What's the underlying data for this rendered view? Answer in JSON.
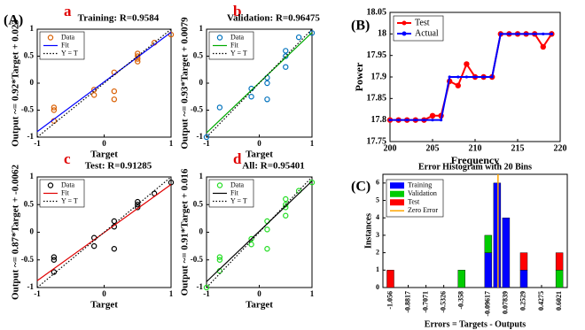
{
  "figure_labels": [
    "(A)",
    "(B)",
    "(C)"
  ],
  "chart_data": [
    {
      "type": "scatter",
      "panel": "a",
      "title": "Training: R=0.9584",
      "xlabel": "Target",
      "ylabel": "Output ~= 0.92*Target + 0.023",
      "xlim": [
        -1,
        1
      ],
      "ylim": [
        -1,
        1
      ],
      "xticks": [
        -1,
        0,
        1
      ],
      "yticks": [
        -1,
        -0.5,
        0,
        0.5,
        1
      ],
      "series": [
        {
          "name": "Data",
          "color": "#d95f02",
          "style": "marker",
          "x": [
            -0.75,
            -0.75,
            -0.75,
            -0.15,
            -0.15,
            0.15,
            0.15,
            0.15,
            0.5,
            0.5,
            0.5,
            0.5,
            0.75,
            1
          ],
          "values": [
            -0.45,
            -0.5,
            -0.7,
            -0.12,
            -0.22,
            0.2,
            -0.15,
            -0.3,
            0.55,
            0.5,
            0.45,
            0.4,
            0.75,
            0.9
          ]
        },
        {
          "name": "Fit",
          "color": "#0000ff",
          "style": "line",
          "x": [
            -1,
            1
          ],
          "values": [
            -0.897,
            0.943
          ]
        },
        {
          "name": "Y = T",
          "color": "#000000",
          "style": "dotted",
          "x": [
            -1,
            1
          ],
          "values": [
            -1,
            1
          ]
        }
      ]
    },
    {
      "type": "scatter",
      "panel": "b",
      "title": "Validation: R=0.96475",
      "xlabel": "Target",
      "ylabel": "Output ~= 0.93*Target + 0.0079",
      "xlim": [
        -1,
        1
      ],
      "ylim": [
        -1,
        1
      ],
      "xticks": [
        -1,
        0,
        1
      ],
      "yticks": [
        -1,
        -0.5,
        0,
        0.5,
        1
      ],
      "series": [
        {
          "name": "Data",
          "color": "#0072bd",
          "style": "marker",
          "x": [
            -0.75,
            -1,
            -0.15,
            -0.15,
            0.15,
            0.15,
            0.15,
            0.5,
            0.5,
            0.5,
            0.75,
            1
          ],
          "values": [
            -0.45,
            -1,
            -0.1,
            -0.25,
            0.1,
            0,
            -0.3,
            0.6,
            0.5,
            0.3,
            0.85,
            0.93
          ]
        },
        {
          "name": "Fit",
          "color": "#00aa00",
          "style": "line",
          "x": [
            -1,
            1
          ],
          "values": [
            -0.922,
            0.938
          ]
        },
        {
          "name": "Y = T",
          "color": "#000000",
          "style": "dotted",
          "x": [
            -1,
            1
          ],
          "values": [
            -1,
            1
          ]
        }
      ]
    },
    {
      "type": "scatter",
      "panel": "c",
      "title": "Test: R=0.91285",
      "xlabel": "Target",
      "ylabel": "Output ~= 0.87*Target + -0.0062",
      "xlim": [
        -1,
        1
      ],
      "ylim": [
        -1,
        1
      ],
      "xticks": [
        -1,
        0,
        1
      ],
      "yticks": [
        -1,
        -0.5,
        0,
        0.5,
        1
      ],
      "series": [
        {
          "name": "Data",
          "color": "#000000",
          "style": "marker",
          "x": [
            -0.75,
            -0.75,
            -0.75,
            -0.15,
            -0.15,
            0.15,
            0.15,
            0.15,
            0.5,
            0.5,
            0.5,
            0.75,
            1
          ],
          "values": [
            -0.45,
            -0.5,
            -0.72,
            -0.1,
            -0.25,
            0.2,
            0.1,
            -0.3,
            0.5,
            0.55,
            0.45,
            0.7,
            0.9
          ]
        },
        {
          "name": "Fit",
          "color": "#e00000",
          "style": "line",
          "x": [
            -1,
            1
          ],
          "values": [
            -0.876,
            0.864
          ]
        },
        {
          "name": "Y = T",
          "color": "#000000",
          "style": "dotted",
          "x": [
            -1,
            1
          ],
          "values": [
            -1,
            1
          ]
        }
      ]
    },
    {
      "type": "scatter",
      "panel": "d",
      "title": "All: R=0.95401",
      "xlabel": "Target",
      "ylabel": "Output ~= 0.91*Target + 0.016",
      "xlim": [
        -1,
        1
      ],
      "ylim": [
        -1,
        1
      ],
      "xticks": [
        -1,
        0,
        1
      ],
      "yticks": [
        -1,
        -0.5,
        0,
        0.5,
        1
      ],
      "series": [
        {
          "name": "Data",
          "color": "#22dd22",
          "style": "marker",
          "x": [
            -1,
            -0.75,
            -0.75,
            -0.75,
            -0.15,
            -0.15,
            0.15,
            0.15,
            0.15,
            0.5,
            0.5,
            0.5,
            0.5,
            0.75,
            1
          ],
          "values": [
            -1,
            -0.45,
            -0.5,
            -0.7,
            -0.12,
            -0.22,
            0.2,
            0.05,
            -0.3,
            0.6,
            0.5,
            0.45,
            0.3,
            0.75,
            0.9
          ]
        },
        {
          "name": "Fit",
          "color": "#000000",
          "style": "line",
          "x": [
            -1,
            1
          ],
          "values": [
            -0.894,
            0.926
          ]
        },
        {
          "name": "Y = T",
          "color": "#000000",
          "style": "dotted",
          "x": [
            -1,
            1
          ],
          "values": [
            -1,
            1
          ]
        }
      ]
    },
    {
      "type": "line",
      "xlabel": "Frequency",
      "ylabel": "Power",
      "xlim": [
        200,
        220
      ],
      "ylim": [
        17.75,
        18.05
      ],
      "xticks": [
        200,
        205,
        210,
        215,
        220
      ],
      "yticks": [
        17.75,
        17.8,
        17.85,
        17.9,
        17.95,
        18,
        18.05
      ],
      "x": [
        200,
        201,
        202,
        203,
        204,
        205,
        206,
        207,
        208,
        209,
        210,
        211,
        212,
        213,
        214,
        215,
        216,
        217,
        218,
        219
      ],
      "series": [
        {
          "name": "Test",
          "color": "#ff0000",
          "values": [
            17.8,
            17.8,
            17.8,
            17.8,
            17.8,
            17.81,
            17.81,
            17.89,
            17.88,
            17.93,
            17.9,
            17.9,
            17.9,
            18,
            18,
            18,
            18,
            18,
            17.97,
            18
          ]
        },
        {
          "name": "Actual",
          "color": "#0000ff",
          "values": [
            17.8,
            17.8,
            17.8,
            17.8,
            17.8,
            17.8,
            17.8,
            17.9,
            17.9,
            17.9,
            17.9,
            17.9,
            17.9,
            18,
            18,
            18,
            18,
            18,
            18,
            18
          ]
        }
      ]
    },
    {
      "type": "histogram",
      "title": "Error Histogram with 20 Bins",
      "xlabel": "Errors = Targets - Outputs",
      "ylabel": "Instances",
      "xlim": [
        -1.13,
        0.68
      ],
      "ylim": [
        0,
        6.5
      ],
      "yticks": [
        0,
        1,
        2,
        3,
        4,
        5,
        6
      ],
      "xticks": [
        -1.056,
        -0.8817,
        -0.7071,
        -0.5326,
        -0.358,
        -0.09617,
        0.07839,
        0.2529,
        0.4275,
        0.6021
      ],
      "bins": [
        -1.0997,
        -1.0124,
        -0.9251,
        -0.8378,
        -0.7505,
        -0.6632,
        -0.5759,
        -0.4886,
        -0.4013,
        -0.314,
        -0.2267,
        -0.1394,
        -0.0521,
        0.0352,
        0.1225,
        0.2098,
        0.2971,
        0.3844,
        0.4717,
        0.559,
        0.6463
      ],
      "series": [
        {
          "name": "Training",
          "color": "#0000ff",
          "values": [
            0,
            0,
            0,
            0,
            0,
            0,
            0,
            0,
            0,
            0,
            0,
            2,
            6,
            4,
            0,
            1,
            0,
            0,
            0,
            0
          ]
        },
        {
          "name": "Validation",
          "color": "#00cc00",
          "values": [
            0,
            0,
            0,
            0,
            0,
            0,
            0,
            0,
            1,
            0,
            0,
            1,
            0,
            0,
            0,
            0,
            0,
            0,
            0,
            1
          ]
        },
        {
          "name": "Test",
          "color": "#ff0000",
          "values": [
            1,
            0,
            0,
            0,
            0,
            0,
            0,
            0,
            0,
            0,
            0,
            0,
            0,
            0,
            0,
            1,
            0,
            0,
            0,
            1
          ]
        }
      ],
      "zero_error": {
        "name": "Zero Error",
        "color": "#ffa500",
        "x": 0
      }
    }
  ]
}
